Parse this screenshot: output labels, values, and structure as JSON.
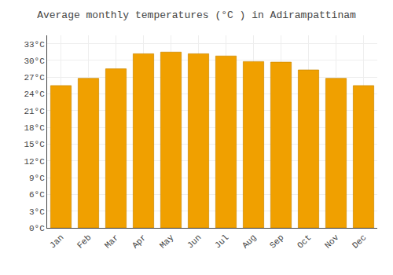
{
  "chart_data": {
    "type": "bar",
    "title": "Average monthly temperatures (°C ) in Adirampattinam",
    "categories": [
      "Jan",
      "Feb",
      "Mar",
      "Apr",
      "May",
      "Jun",
      "Jul",
      "Aug",
      "Sep",
      "Oct",
      "Nov",
      "Dec"
    ],
    "values": [
      25.5,
      26.8,
      28.5,
      31.2,
      31.5,
      31.2,
      30.8,
      29.8,
      29.7,
      28.3,
      26.8,
      25.5
    ],
    "color": "#F0A000",
    "ylim": [
      0,
      34.5
    ],
    "yticks": [
      {
        "value": 0,
        "label": "0°C"
      },
      {
        "value": 3,
        "label": "3°C"
      },
      {
        "value": 6,
        "label": "6°C"
      },
      {
        "value": 9,
        "label": "9°C"
      },
      {
        "value": 12,
        "label": "12°C"
      },
      {
        "value": 15,
        "label": "15°C"
      },
      {
        "value": 18,
        "label": "18°C"
      },
      {
        "value": 21,
        "label": "21°C"
      },
      {
        "value": 24,
        "label": "24°C"
      },
      {
        "value": 27,
        "label": "27°C"
      },
      {
        "value": 30,
        "label": "30°C"
      },
      {
        "value": 33,
        "label": "33°C"
      }
    ],
    "grid": true
  }
}
